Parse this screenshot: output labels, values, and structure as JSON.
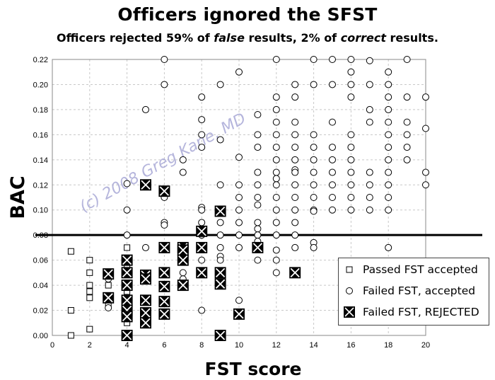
{
  "title_prefix": "Officers ignored the SFST",
  "subtitle": {
    "part1": "Officers rejected 59% of ",
    "part2_italic": "false",
    "part3": " results, 2% of ",
    "part4_italic": "correct",
    "part5": " results."
  },
  "watermark": "(c) 2008 Greg Kane, MD",
  "legend": {
    "passed": "Passed FST accepted",
    "failed_accepted": "Failed FST, accepted",
    "failed_rejected": "Failed FST, REJECTED"
  },
  "chart_data": {
    "type": "scatter",
    "title": "Officers ignored the SFST",
    "subtitle": "Officers rejected 59% of false results, 2% of correct results.",
    "xlabel": "FST score",
    "ylabel": "BAC",
    "xlim": [
      0,
      20
    ],
    "ylim": [
      0,
      0.22
    ],
    "xticks": [
      0,
      2,
      4,
      6,
      8,
      10,
      12,
      14,
      16,
      18,
      20
    ],
    "yticks": [
      0.0,
      0.02,
      0.04,
      0.06,
      0.08,
      0.1,
      0.12,
      0.14,
      0.16,
      0.18,
      0.2,
      0.22
    ],
    "reference_line": {
      "y": 0.08
    },
    "grid": true,
    "legend_position": "bottom-right",
    "series": [
      {
        "name": "Passed FST accepted",
        "marker": "square",
        "points": [
          [
            1,
            0.067
          ],
          [
            1,
            0.02
          ],
          [
            1,
            0.0
          ],
          [
            2,
            0.06
          ],
          [
            2,
            0.05
          ],
          [
            2,
            0.04
          ],
          [
            2,
            0.035
          ],
          [
            2,
            0.03
          ],
          [
            2,
            0.005
          ],
          [
            3,
            0.05
          ],
          [
            3,
            0.04
          ],
          [
            3,
            0.025
          ],
          [
            4,
            0.07
          ],
          [
            4,
            0.055
          ],
          [
            4,
            0.035
          ],
          [
            4,
            0.02
          ],
          [
            4,
            0.01
          ]
        ]
      },
      {
        "name": "Failed FST, accepted",
        "marker": "circle",
        "points": [
          [
            3,
            0.045
          ],
          [
            3,
            0.022
          ],
          [
            4,
            0.121
          ],
          [
            4,
            0.1
          ],
          [
            4,
            0.08
          ],
          [
            5,
            0.18
          ],
          [
            5,
            0.07
          ],
          [
            6,
            0.22
          ],
          [
            6,
            0.2
          ],
          [
            6,
            0.11
          ],
          [
            6,
            0.09
          ],
          [
            6,
            0.088
          ],
          [
            6,
            0.07
          ],
          [
            7,
            0.14
          ],
          [
            7,
            0.13
          ],
          [
            7,
            0.05
          ],
          [
            7,
            0.045
          ],
          [
            8,
            0.19
          ],
          [
            8,
            0.172
          ],
          [
            8,
            0.16
          ],
          [
            8,
            0.15
          ],
          [
            8,
            0.102
          ],
          [
            8,
            0.1
          ],
          [
            8,
            0.09
          ],
          [
            8,
            0.08
          ],
          [
            8,
            0.06
          ],
          [
            8,
            0.02
          ],
          [
            9,
            0.2
          ],
          [
            9,
            0.156
          ],
          [
            9,
            0.12
          ],
          [
            9,
            0.09
          ],
          [
            9,
            0.08
          ],
          [
            9,
            0.07
          ],
          [
            9,
            0.063
          ],
          [
            9,
            0.06
          ],
          [
            9,
            0.045
          ],
          [
            9,
            0.04
          ],
          [
            10,
            0.21
          ],
          [
            10,
            0.142
          ],
          [
            10,
            0.12
          ],
          [
            10,
            0.11
          ],
          [
            10,
            0.1
          ],
          [
            10,
            0.09
          ],
          [
            10,
            0.08
          ],
          [
            10,
            0.07
          ],
          [
            10,
            0.028
          ],
          [
            11,
            0.176
          ],
          [
            11,
            0.16
          ],
          [
            11,
            0.15
          ],
          [
            11,
            0.13
          ],
          [
            11,
            0.12
          ],
          [
            11,
            0.11
          ],
          [
            11,
            0.104
          ],
          [
            11,
            0.09
          ],
          [
            11,
            0.085
          ],
          [
            11,
            0.08
          ],
          [
            11,
            0.075
          ],
          [
            11,
            0.06
          ],
          [
            12,
            0.22
          ],
          [
            12,
            0.19
          ],
          [
            12,
            0.18
          ],
          [
            12,
            0.17
          ],
          [
            12,
            0.16
          ],
          [
            12,
            0.15
          ],
          [
            12,
            0.14
          ],
          [
            12,
            0.13
          ],
          [
            12,
            0.125
          ],
          [
            12,
            0.12
          ],
          [
            12,
            0.11
          ],
          [
            12,
            0.1
          ],
          [
            12,
            0.09
          ],
          [
            12,
            0.08
          ],
          [
            12,
            0.068
          ],
          [
            12,
            0.06
          ],
          [
            12,
            0.05
          ],
          [
            13,
            0.2
          ],
          [
            13,
            0.19
          ],
          [
            13,
            0.17
          ],
          [
            13,
            0.16
          ],
          [
            13,
            0.15
          ],
          [
            13,
            0.14
          ],
          [
            13,
            0.132
          ],
          [
            13,
            0.13
          ],
          [
            13,
            0.12
          ],
          [
            13,
            0.11
          ],
          [
            13,
            0.1
          ],
          [
            13,
            0.09
          ],
          [
            13,
            0.08
          ],
          [
            13,
            0.07
          ],
          [
            14,
            0.22
          ],
          [
            14,
            0.2
          ],
          [
            14,
            0.16
          ],
          [
            14,
            0.15
          ],
          [
            14,
            0.14
          ],
          [
            14,
            0.13
          ],
          [
            14,
            0.12
          ],
          [
            14,
            0.11
          ],
          [
            14,
            0.1
          ],
          [
            14,
            0.099
          ],
          [
            14,
            0.074
          ],
          [
            14,
            0.07
          ],
          [
            15,
            0.22
          ],
          [
            15,
            0.2
          ],
          [
            15,
            0.17
          ],
          [
            15,
            0.15
          ],
          [
            15,
            0.14
          ],
          [
            15,
            0.13
          ],
          [
            15,
            0.12
          ],
          [
            15,
            0.11
          ],
          [
            15,
            0.1
          ],
          [
            16,
            0.22
          ],
          [
            16,
            0.21
          ],
          [
            16,
            0.2
          ],
          [
            16,
            0.19
          ],
          [
            16,
            0.16
          ],
          [
            16,
            0.15
          ],
          [
            16,
            0.14
          ],
          [
            16,
            0.13
          ],
          [
            16,
            0.12
          ],
          [
            16,
            0.11
          ],
          [
            16,
            0.1
          ],
          [
            17,
            0.219
          ],
          [
            17,
            0.2
          ],
          [
            17,
            0.18
          ],
          [
            17,
            0.17
          ],
          [
            17,
            0.13
          ],
          [
            17,
            0.12
          ],
          [
            17,
            0.11
          ],
          [
            17,
            0.1
          ],
          [
            18,
            0.21
          ],
          [
            18,
            0.2
          ],
          [
            18,
            0.19
          ],
          [
            18,
            0.18
          ],
          [
            18,
            0.17
          ],
          [
            18,
            0.16
          ],
          [
            18,
            0.15
          ],
          [
            18,
            0.14
          ],
          [
            18,
            0.13
          ],
          [
            18,
            0.12
          ],
          [
            18,
            0.11
          ],
          [
            18,
            0.1
          ],
          [
            18,
            0.07
          ],
          [
            19,
            0.22
          ],
          [
            19,
            0.19
          ],
          [
            19,
            0.17
          ],
          [
            19,
            0.16
          ],
          [
            19,
            0.15
          ],
          [
            19,
            0.14
          ],
          [
            20,
            0.19
          ],
          [
            20,
            0.165
          ],
          [
            20,
            0.13
          ],
          [
            20,
            0.12
          ]
        ]
      },
      {
        "name": "Failed FST, REJECTED",
        "marker": "x-box",
        "points": [
          [
            3,
            0.049
          ],
          [
            3,
            0.03
          ],
          [
            4,
            0.06
          ],
          [
            4,
            0.05
          ],
          [
            4,
            0.04
          ],
          [
            4,
            0.028
          ],
          [
            4,
            0.02
          ],
          [
            4,
            0.015
          ],
          [
            4,
            0.0
          ],
          [
            5,
            0.12
          ],
          [
            5,
            0.048
          ],
          [
            5,
            0.045
          ],
          [
            5,
            0.028
          ],
          [
            5,
            0.018
          ],
          [
            5,
            0.01
          ],
          [
            6,
            0.115
          ],
          [
            6,
            0.07
          ],
          [
            6,
            0.05
          ],
          [
            6,
            0.039
          ],
          [
            6,
            0.027
          ],
          [
            6,
            0.017
          ],
          [
            7,
            0.07
          ],
          [
            7,
            0.068
          ],
          [
            7,
            0.06
          ],
          [
            7,
            0.04
          ],
          [
            8,
            0.083
          ],
          [
            8,
            0.07
          ],
          [
            8,
            0.05
          ],
          [
            9,
            0.099
          ],
          [
            9,
            0.05
          ],
          [
            9,
            0.041
          ],
          [
            9,
            0.0
          ],
          [
            10,
            0.017
          ],
          [
            11,
            0.07
          ],
          [
            13,
            0.05
          ]
        ]
      }
    ]
  }
}
